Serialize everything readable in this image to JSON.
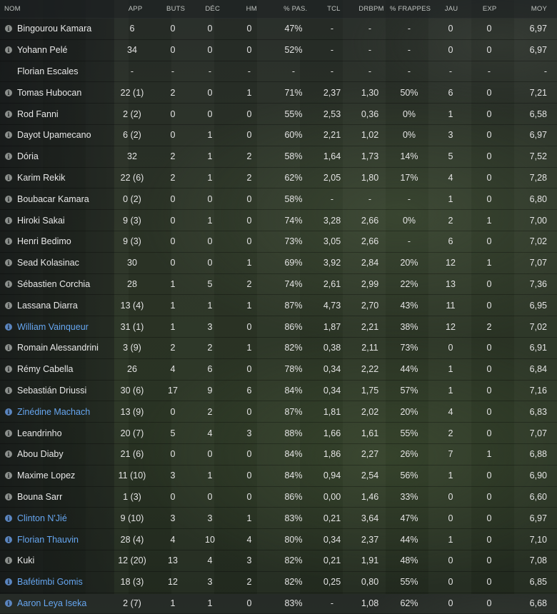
{
  "columns": {
    "name": "NOM",
    "app": "APP",
    "buts": "BUTS",
    "dec": "DÉC",
    "hm": "HM",
    "pas": "% PAS.",
    "tcl": "TCL",
    "drbpm": "DRBPM",
    "frappes": "% FRAPPES",
    "jau": "JAU",
    "exp": "EXP",
    "moy": "MOY"
  },
  "rows": [
    {
      "name": "Bingourou Kamara",
      "icon": true,
      "loan": false,
      "app": "6",
      "buts": "0",
      "dec": "0",
      "hm": "0",
      "pas": "47%",
      "tcl": "-",
      "drbpm": "-",
      "frappes": "-",
      "jau": "0",
      "exp": "0",
      "moy": "6,97"
    },
    {
      "name": "Yohann Pelé",
      "icon": true,
      "loan": false,
      "app": "34",
      "buts": "0",
      "dec": "0",
      "hm": "0",
      "pas": "52%",
      "tcl": "-",
      "drbpm": "-",
      "frappes": "-",
      "jau": "0",
      "exp": "0",
      "moy": "6,97"
    },
    {
      "name": "Florian Escales",
      "icon": false,
      "loan": false,
      "app": "-",
      "buts": "-",
      "dec": "-",
      "hm": "-",
      "pas": "-",
      "tcl": "-",
      "drbpm": "-",
      "frappes": "-",
      "jau": "-",
      "exp": "-",
      "moy": "-"
    },
    {
      "name": "Tomas Hubocan",
      "icon": true,
      "loan": false,
      "app": "22 (1)",
      "buts": "2",
      "dec": "0",
      "hm": "1",
      "pas": "71%",
      "tcl": "2,37",
      "drbpm": "1,30",
      "frappes": "50%",
      "jau": "6",
      "exp": "0",
      "moy": "7,21"
    },
    {
      "name": "Rod Fanni",
      "icon": true,
      "loan": false,
      "app": "2 (2)",
      "buts": "0",
      "dec": "0",
      "hm": "0",
      "pas": "55%",
      "tcl": "2,53",
      "drbpm": "0,36",
      "frappes": "0%",
      "jau": "1",
      "exp": "0",
      "moy": "6,58"
    },
    {
      "name": "Dayot Upamecano",
      "icon": true,
      "loan": false,
      "app": "6 (2)",
      "buts": "0",
      "dec": "1",
      "hm": "0",
      "pas": "60%",
      "tcl": "2,21",
      "drbpm": "1,02",
      "frappes": "0%",
      "jau": "3",
      "exp": "0",
      "moy": "6,97"
    },
    {
      "name": "Dória",
      "icon": true,
      "loan": false,
      "app": "32",
      "buts": "2",
      "dec": "1",
      "hm": "2",
      "pas": "58%",
      "tcl": "1,64",
      "drbpm": "1,73",
      "frappes": "14%",
      "jau": "5",
      "exp": "0",
      "moy": "7,52"
    },
    {
      "name": "Karim Rekik",
      "icon": true,
      "loan": false,
      "app": "22 (6)",
      "buts": "2",
      "dec": "1",
      "hm": "2",
      "pas": "62%",
      "tcl": "2,05",
      "drbpm": "1,80",
      "frappes": "17%",
      "jau": "4",
      "exp": "0",
      "moy": "7,28"
    },
    {
      "name": "Boubacar Kamara",
      "icon": true,
      "loan": false,
      "app": "0 (2)",
      "buts": "0",
      "dec": "0",
      "hm": "0",
      "pas": "58%",
      "tcl": "-",
      "drbpm": "-",
      "frappes": "-",
      "jau": "1",
      "exp": "0",
      "moy": "6,80"
    },
    {
      "name": "Hiroki Sakai",
      "icon": true,
      "loan": false,
      "app": "9 (3)",
      "buts": "0",
      "dec": "1",
      "hm": "0",
      "pas": "74%",
      "tcl": "3,28",
      "drbpm": "2,66",
      "frappes": "0%",
      "jau": "2",
      "exp": "1",
      "moy": "7,00"
    },
    {
      "name": "Henri Bedimo",
      "icon": true,
      "loan": false,
      "app": "9 (3)",
      "buts": "0",
      "dec": "0",
      "hm": "0",
      "pas": "73%",
      "tcl": "3,05",
      "drbpm": "2,66",
      "frappes": "-",
      "jau": "6",
      "exp": "0",
      "moy": "7,02"
    },
    {
      "name": "Sead Kolasinac",
      "icon": true,
      "loan": false,
      "app": "30",
      "buts": "0",
      "dec": "0",
      "hm": "1",
      "pas": "69%",
      "tcl": "3,92",
      "drbpm": "2,84",
      "frappes": "20%",
      "jau": "12",
      "exp": "1",
      "moy": "7,07"
    },
    {
      "name": "Sébastien Corchia",
      "icon": true,
      "loan": false,
      "app": "28",
      "buts": "1",
      "dec": "5",
      "hm": "2",
      "pas": "74%",
      "tcl": "2,61",
      "drbpm": "2,99",
      "frappes": "22%",
      "jau": "13",
      "exp": "0",
      "moy": "7,36"
    },
    {
      "name": "Lassana Diarra",
      "icon": true,
      "loan": false,
      "app": "13 (4)",
      "buts": "1",
      "dec": "1",
      "hm": "1",
      "pas": "87%",
      "tcl": "4,73",
      "drbpm": "2,70",
      "frappes": "43%",
      "jau": "11",
      "exp": "0",
      "moy": "6,95"
    },
    {
      "name": "William Vainqueur",
      "icon": true,
      "loan": true,
      "app": "31 (1)",
      "buts": "1",
      "dec": "3",
      "hm": "0",
      "pas": "86%",
      "tcl": "1,87",
      "drbpm": "2,21",
      "frappes": "38%",
      "jau": "12",
      "exp": "2",
      "moy": "7,02"
    },
    {
      "name": "Romain Alessandrini",
      "icon": true,
      "loan": false,
      "app": "3 (9)",
      "buts": "2",
      "dec": "2",
      "hm": "1",
      "pas": "82%",
      "tcl": "0,38",
      "drbpm": "2,11",
      "frappes": "73%",
      "jau": "0",
      "exp": "0",
      "moy": "6,91"
    },
    {
      "name": "Rémy Cabella",
      "icon": true,
      "loan": false,
      "app": "26",
      "buts": "4",
      "dec": "6",
      "hm": "0",
      "pas": "78%",
      "tcl": "0,34",
      "drbpm": "2,22",
      "frappes": "44%",
      "jau": "1",
      "exp": "0",
      "moy": "6,84"
    },
    {
      "name": "Sebastián Driussi",
      "icon": true,
      "loan": false,
      "app": "30 (6)",
      "buts": "17",
      "dec": "9",
      "hm": "6",
      "pas": "84%",
      "tcl": "0,34",
      "drbpm": "1,75",
      "frappes": "57%",
      "jau": "1",
      "exp": "0",
      "moy": "7,16"
    },
    {
      "name": "Zinédine Machach",
      "icon": true,
      "loan": true,
      "app": "13 (9)",
      "buts": "0",
      "dec": "2",
      "hm": "0",
      "pas": "87%",
      "tcl": "1,81",
      "drbpm": "2,02",
      "frappes": "20%",
      "jau": "4",
      "exp": "0",
      "moy": "6,83"
    },
    {
      "name": "Leandrinho",
      "icon": true,
      "loan": false,
      "app": "20 (7)",
      "buts": "5",
      "dec": "4",
      "hm": "3",
      "pas": "88%",
      "tcl": "1,66",
      "drbpm": "1,61",
      "frappes": "55%",
      "jau": "2",
      "exp": "0",
      "moy": "7,07"
    },
    {
      "name": "Abou Diaby",
      "icon": true,
      "loan": false,
      "app": "21 (6)",
      "buts": "0",
      "dec": "0",
      "hm": "0",
      "pas": "84%",
      "tcl": "1,86",
      "drbpm": "2,27",
      "frappes": "26%",
      "jau": "7",
      "exp": "1",
      "moy": "6,88"
    },
    {
      "name": "Maxime Lopez",
      "icon": true,
      "loan": false,
      "app": "11 (10)",
      "buts": "3",
      "dec": "1",
      "hm": "0",
      "pas": "84%",
      "tcl": "0,94",
      "drbpm": "2,54",
      "frappes": "56%",
      "jau": "1",
      "exp": "0",
      "moy": "6,90"
    },
    {
      "name": "Bouna Sarr",
      "icon": true,
      "loan": false,
      "app": "1 (3)",
      "buts": "0",
      "dec": "0",
      "hm": "0",
      "pas": "86%",
      "tcl": "0,00",
      "drbpm": "1,46",
      "frappes": "33%",
      "jau": "0",
      "exp": "0",
      "moy": "6,60"
    },
    {
      "name": "Clinton N'Jié",
      "icon": true,
      "loan": true,
      "app": "9 (10)",
      "buts": "3",
      "dec": "3",
      "hm": "1",
      "pas": "83%",
      "tcl": "0,21",
      "drbpm": "3,64",
      "frappes": "47%",
      "jau": "0",
      "exp": "0",
      "moy": "6,97"
    },
    {
      "name": "Florian Thauvin",
      "icon": true,
      "loan": true,
      "app": "28 (4)",
      "buts": "4",
      "dec": "10",
      "hm": "4",
      "pas": "80%",
      "tcl": "0,34",
      "drbpm": "2,37",
      "frappes": "44%",
      "jau": "1",
      "exp": "0",
      "moy": "7,10"
    },
    {
      "name": "Kuki",
      "icon": true,
      "loan": false,
      "app": "12 (20)",
      "buts": "13",
      "dec": "4",
      "hm": "3",
      "pas": "82%",
      "tcl": "0,21",
      "drbpm": "1,91",
      "frappes": "48%",
      "jau": "0",
      "exp": "0",
      "moy": "7,08"
    },
    {
      "name": "Bafétimbi Gomis",
      "icon": true,
      "loan": true,
      "app": "18 (3)",
      "buts": "12",
      "dec": "3",
      "hm": "2",
      "pas": "82%",
      "tcl": "0,25",
      "drbpm": "0,80",
      "frappes": "55%",
      "jau": "0",
      "exp": "0",
      "moy": "6,85"
    },
    {
      "name": "Aaron Leya Iseka",
      "icon": true,
      "loan": true,
      "app": "2 (7)",
      "buts": "1",
      "dec": "1",
      "hm": "0",
      "pas": "83%",
      "tcl": "-",
      "drbpm": "1,08",
      "frappes": "62%",
      "jau": "0",
      "exp": "0",
      "moy": "6,68"
    }
  ],
  "colors": {
    "loan_name": "#66a6f0",
    "default_text": "#e8e8e8",
    "header_text": "#bfc3c0"
  },
  "icons": {
    "player_info": "info-icon"
  }
}
